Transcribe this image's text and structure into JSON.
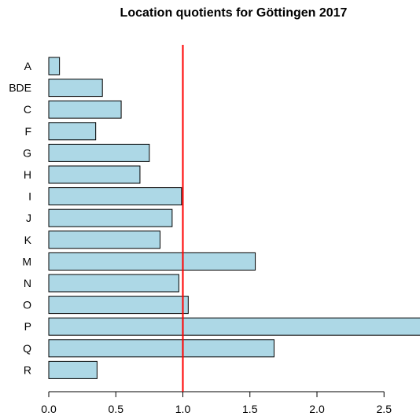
{
  "chart_data": {
    "type": "bar",
    "orientation": "horizontal",
    "title": "Location quotients for Göttingen 2017",
    "xlabel": "",
    "ylabel": "",
    "categories": [
      "A",
      "BDE",
      "C",
      "F",
      "G",
      "H",
      "I",
      "J",
      "K",
      "M",
      "N",
      "O",
      "P",
      "Q",
      "R"
    ],
    "values": [
      0.08,
      0.4,
      0.54,
      0.35,
      0.75,
      0.68,
      0.99,
      0.92,
      0.83,
      1.54,
      0.97,
      1.04,
      2.8,
      1.68,
      0.36
    ],
    "xlim": [
      0.0,
      2.8
    ],
    "x_ticks": [
      "0.0",
      "0.5",
      "1.0",
      "1.5",
      "2.0",
      "2.5"
    ],
    "x_tick_values": [
      0.0,
      0.5,
      1.0,
      1.5,
      2.0,
      2.5
    ],
    "reference_line": 1.0,
    "grid": false,
    "legend": "none",
    "bar_color": "#add8e6",
    "bar_border_color": "#000000",
    "reference_line_color": "#ff0000"
  }
}
